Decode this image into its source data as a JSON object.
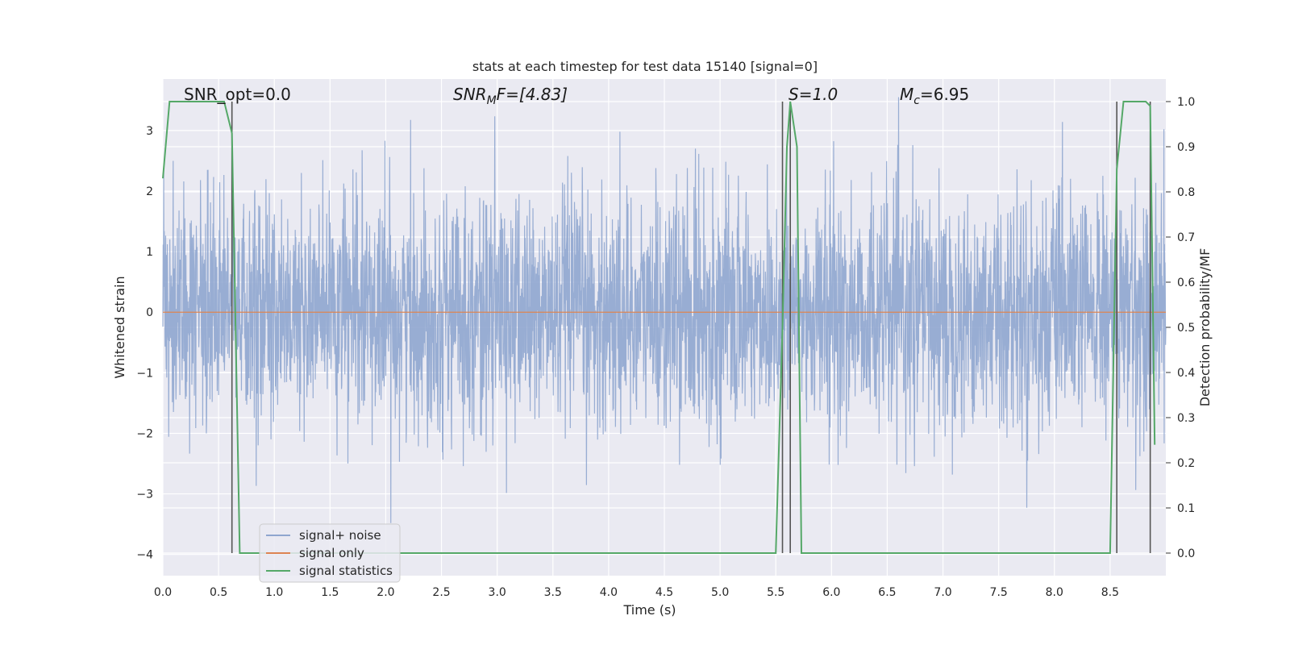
{
  "chart_data": {
    "type": "line",
    "title": "stats at each timestep for test data 15140 [signal=0]",
    "xlabel": "Time (s)",
    "ylabel": "Whitened strain",
    "y2label": "Detection probability/MF",
    "xlim": [
      0,
      9.0
    ],
    "ylim": [
      -4.35,
      3.85
    ],
    "y2lim": [
      -0.05,
      1.05
    ],
    "x_ticks": [
      "0.0",
      "0.5",
      "1.0",
      "1.5",
      "2.0",
      "2.5",
      "3.0",
      "3.5",
      "4.0",
      "4.5",
      "5.0",
      "5.5",
      "6.0",
      "6.5",
      "7.0",
      "7.5",
      "8.0",
      "8.5"
    ],
    "y_ticks": [
      "3",
      "2",
      "1",
      "0",
      "−1",
      "−2",
      "−3",
      "−4"
    ],
    "y2_ticks": [
      "1.0",
      "0.9",
      "0.8",
      "0.7",
      "0.6",
      "0.5",
      "0.4",
      "0.3",
      "0.2",
      "0.1",
      "0.0"
    ],
    "grid": true,
    "legend_position": "lower-left",
    "annotations": {
      "snr_opt": "SNR_opt=0.0",
      "snr_mf_base": "SNR",
      "snr_mf_sub": "M",
      "snr_mf_rest": "F=[4.83]",
      "s_stat": "S=1.0",
      "mc_base": "M",
      "mc_sub": "c",
      "mc_rest": "=6.95"
    },
    "series": [
      {
        "name": "signal+ noise",
        "color": "#8fa6cf",
        "description_values": "noise, amplitude roughly within [-2, 2] with spikes to about ±3.5",
        "amplitude_std": 0.95,
        "x_range": [
          0,
          9.0
        ]
      },
      {
        "name": "signal only",
        "color": "#dd8452",
        "x": [
          0,
          9.0
        ],
        "y": [
          0,
          0
        ]
      },
      {
        "name": "signal statistics",
        "color": "#55a868",
        "axis": "right",
        "x": [
          0.0,
          0.06,
          0.1,
          0.55,
          0.62,
          0.69,
          5.5,
          5.56,
          5.6,
          5.63,
          5.69,
          5.73,
          8.5,
          8.56,
          8.62,
          8.82,
          8.86,
          8.9
        ],
        "y": [
          0.83,
          1.0,
          1.0,
          1.0,
          0.93,
          0.0,
          0.0,
          0.5,
          0.9,
          1.0,
          0.9,
          0.0,
          0.0,
          0.85,
          1.0,
          1.0,
          0.99,
          0.24
        ]
      }
    ],
    "vlines": [
      0.62,
      5.56,
      5.63,
      8.56,
      8.86
    ]
  },
  "colors": {
    "plot_background": "#eaeaf2",
    "grid": "#ffffff",
    "vline": "#555555"
  }
}
